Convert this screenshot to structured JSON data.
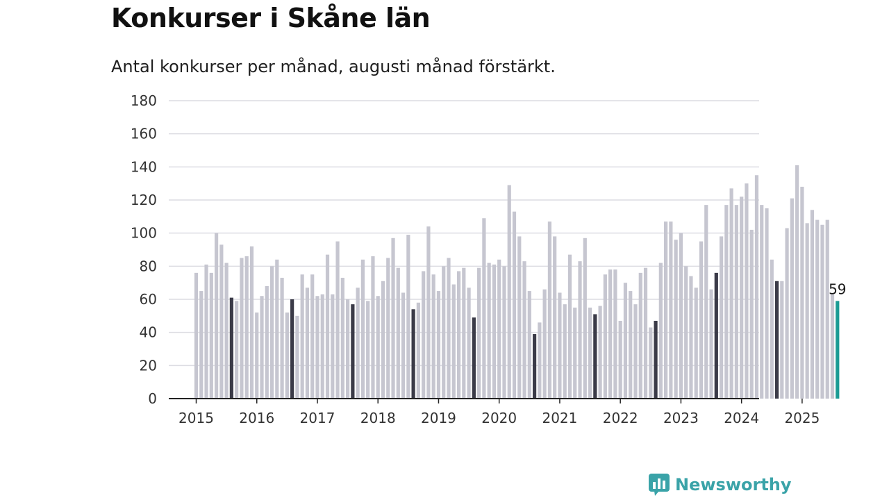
{
  "title": "Konkurser i Skåne län",
  "subtitle": "Antal konkurser per månad, augusti månad förstärkt.",
  "brand": {
    "name": "Newsworthy",
    "icon": "newsworthy-logo-icon"
  },
  "colors": {
    "bar": "#c6c6d0",
    "highlight": "#3b3b48",
    "latest": "#1a9b94",
    "grid": "#dcdce2",
    "axis": "#222222",
    "brand": "#3aa3a8"
  },
  "chart_data": {
    "type": "bar",
    "title": "Konkurser i Skåne län",
    "subtitle": "Antal konkurser per månad, augusti månad förstärkt.",
    "xlabel": "",
    "ylabel": "",
    "ylim": [
      0,
      180
    ],
    "yticks": [
      0,
      20,
      40,
      60,
      80,
      100,
      120,
      140,
      160,
      180
    ],
    "grid": true,
    "start_year": 2015,
    "highlight_month": 8,
    "year_labels": [
      "2015",
      "2016",
      "2017",
      "2018",
      "2019",
      "2020",
      "2021",
      "2022",
      "2023",
      "2024",
      "2025"
    ],
    "series": [
      {
        "values": [
          76,
          65,
          81,
          76,
          100,
          93,
          82,
          61,
          59,
          85,
          86,
          92,
          52,
          62,
          68,
          80,
          84,
          73,
          52,
          60,
          50,
          75,
          67,
          75,
          62,
          63,
          87,
          63,
          95,
          73,
          60,
          57,
          67,
          84,
          59,
          86,
          62,
          71,
          85,
          97,
          79,
          64,
          99,
          54,
          58,
          77,
          104,
          75,
          65,
          80,
          85,
          69,
          77,
          79,
          67,
          49,
          79,
          109,
          82,
          81,
          84,
          80,
          129,
          113,
          98,
          83,
          65,
          39,
          46,
          66,
          107,
          98,
          64,
          57,
          87,
          55,
          83,
          97,
          55,
          51,
          56,
          75,
          78,
          78,
          47,
          70,
          65,
          57,
          76,
          79,
          43,
          47,
          82,
          107,
          107,
          96,
          100,
          80,
          74,
          67,
          95,
          117,
          66,
          76,
          98,
          117,
          127,
          117,
          122,
          130,
          102,
          135,
          117,
          115,
          84,
          71,
          71,
          103,
          121,
          141,
          128,
          106,
          114,
          108,
          105,
          108,
          63,
          59
        ]
      }
    ],
    "annotations": [
      {
        "text": "59"
      }
    ]
  }
}
